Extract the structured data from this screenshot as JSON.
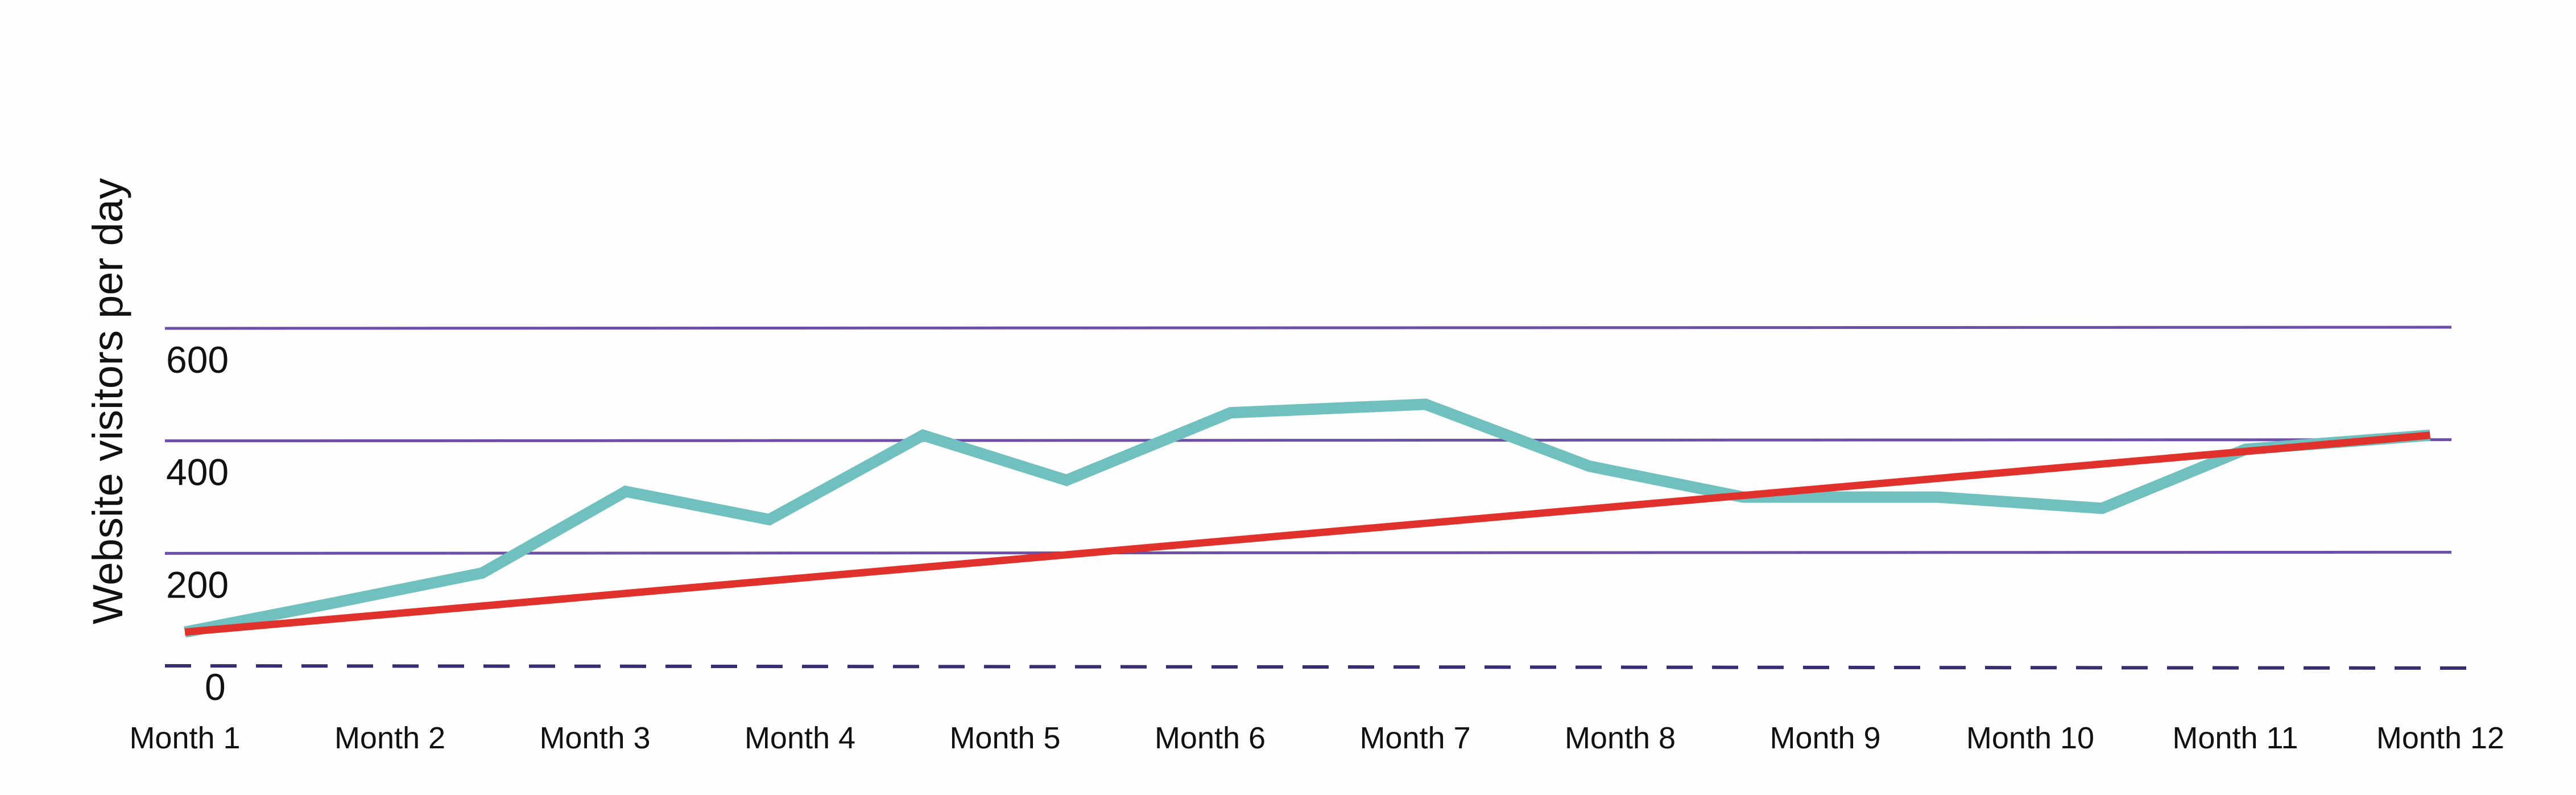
{
  "colors": {
    "grid": "#6e4fa8",
    "zero_line": "#3a2c70",
    "visitors_line": "#6fc0bf",
    "trend_line": "#e0312c",
    "background": "#fefefe"
  },
  "chart_data": {
    "type": "line",
    "title": "",
    "xlabel": "",
    "ylabel": "Website visitors per day",
    "categories": [
      "Month 1",
      "Month 2",
      "Month 3",
      "Month 4",
      "Month 5",
      "Month 6",
      "Month 7",
      "Month 8",
      "Month 9",
      "Month 10",
      "Month 11",
      "Month 12"
    ],
    "ylim": [
      0,
      600
    ],
    "y_ticks": [
      0,
      200,
      400,
      600
    ],
    "y_tick_labels": [
      "0",
      "200",
      "400",
      "600"
    ],
    "grid": true,
    "zero_line_style": "dashed",
    "series": [
      {
        "key": "visitors",
        "x": [
          1,
          1.7,
          2.45,
          3.15,
          3.85,
          4.6,
          5.3,
          6.1,
          7.05,
          7.85,
          8.6,
          9.55,
          10.35,
          11.05,
          11.95
        ],
        "values": [
          60,
          110,
          165,
          310,
          260,
          410,
          330,
          450,
          465,
          355,
          300,
          300,
          280,
          385,
          410
        ]
      },
      {
        "key": "trend",
        "x": [
          1,
          11.95
        ],
        "values": [
          60,
          410
        ]
      }
    ]
  }
}
